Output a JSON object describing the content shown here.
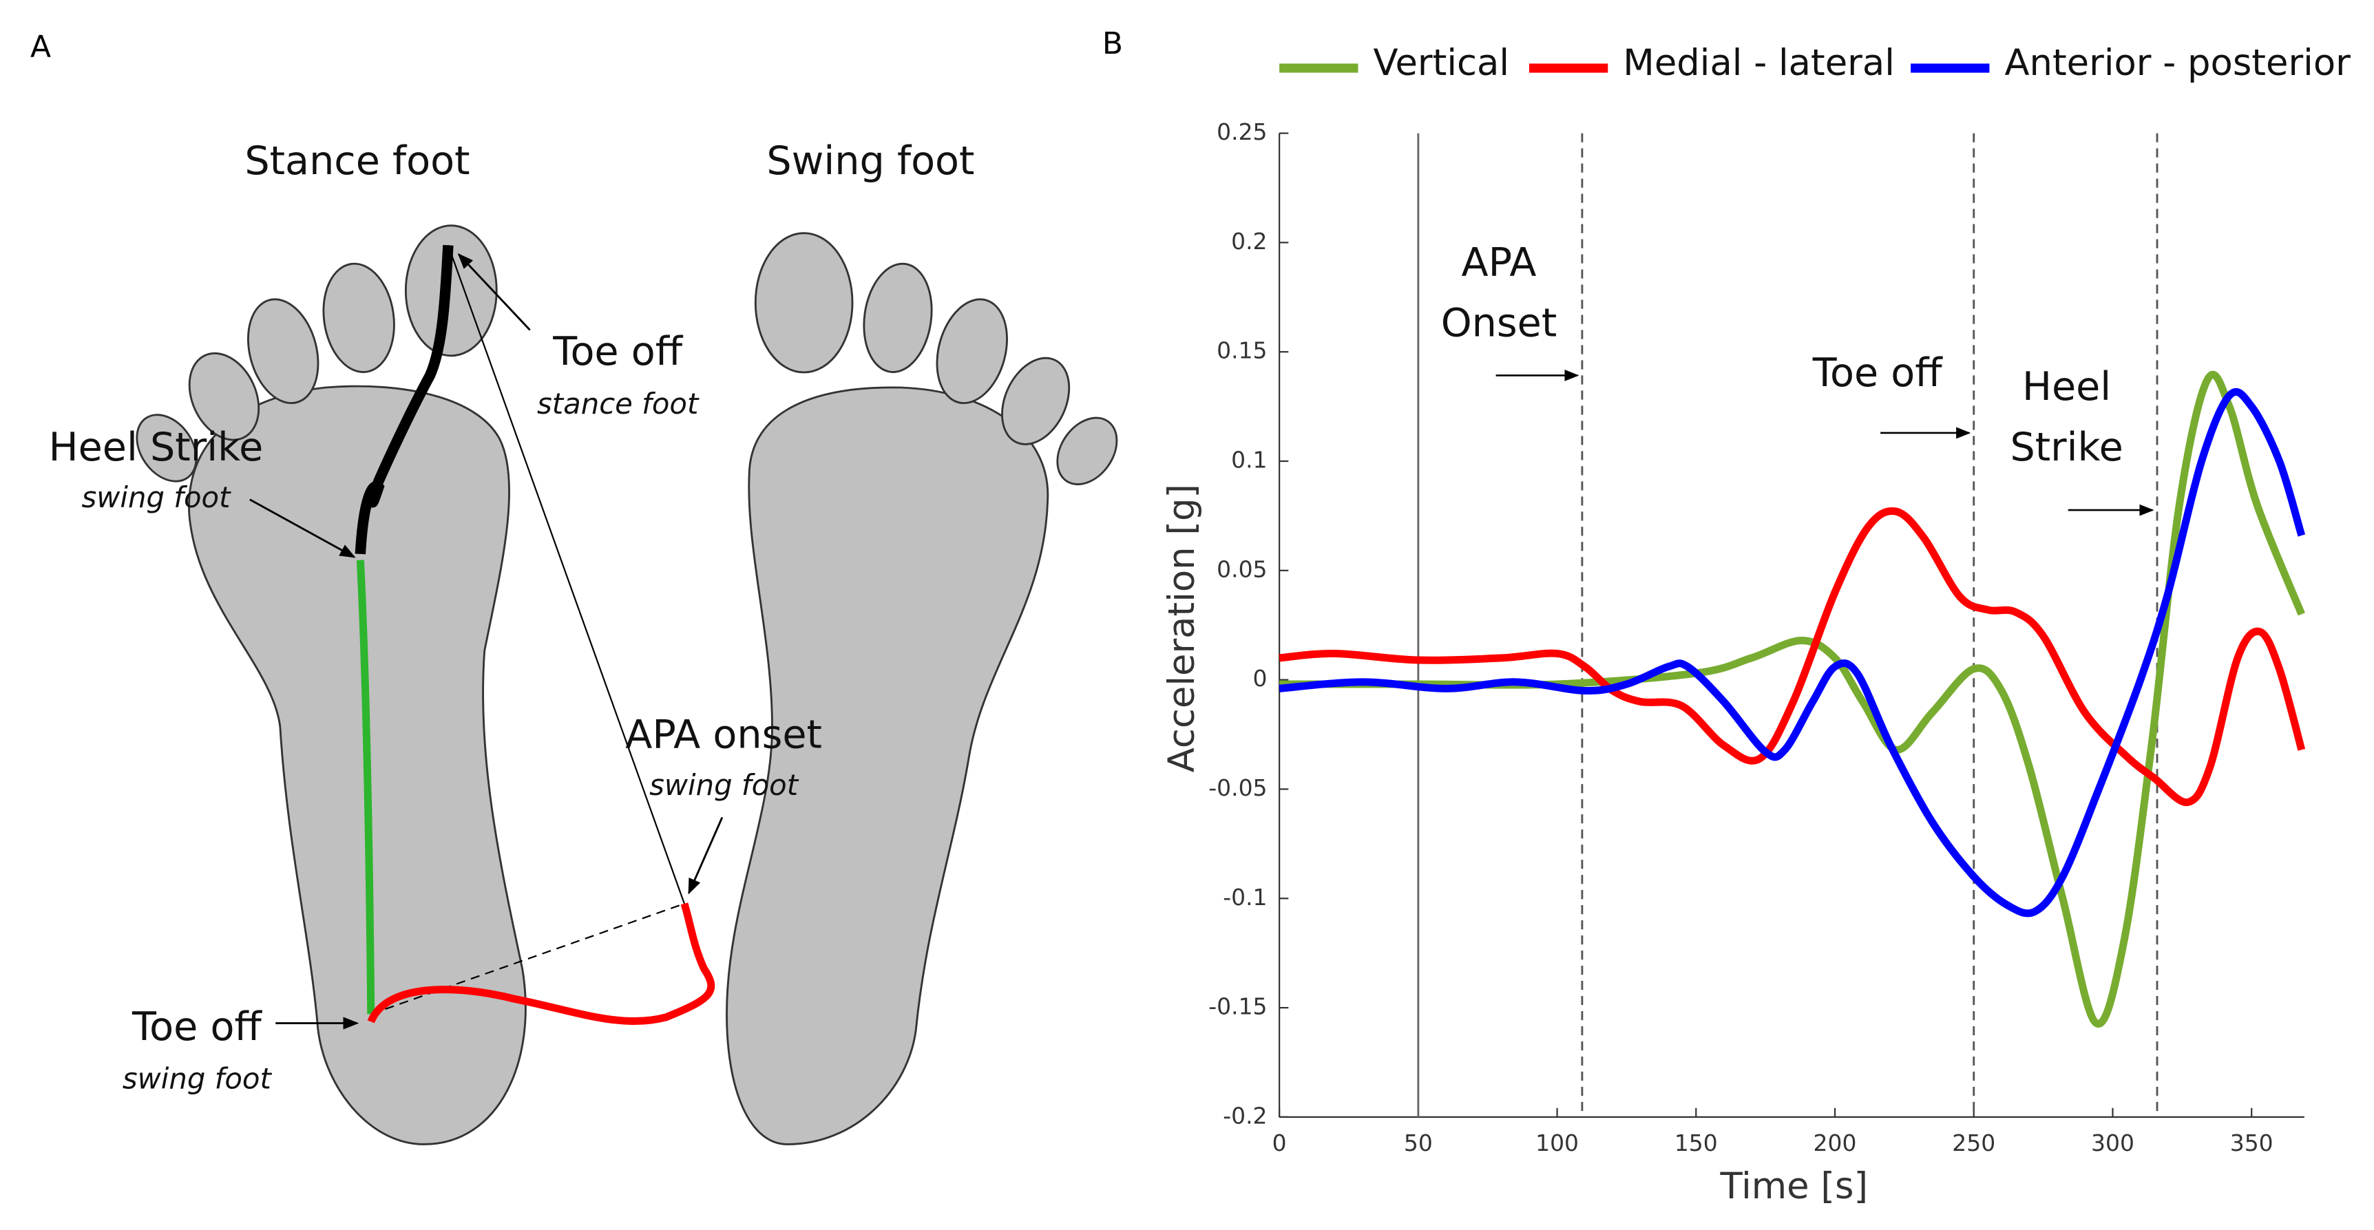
{
  "diagram": {
    "panel_label": "A",
    "stance_foot": "Stance foot",
    "swing_foot": "Swing foot",
    "annotations": [
      {
        "title": "Toe off",
        "subtitle": "stance foot"
      },
      {
        "title": "Heel Strike",
        "subtitle": "swing foot"
      },
      {
        "title": "APA onset",
        "subtitle": "swing foot"
      },
      {
        "title": "Toe off",
        "subtitle": "swing foot"
      }
    ]
  },
  "chart_data": {
    "type": "line",
    "panel_label": "B",
    "xlabel": "Time [s]",
    "ylabel": "Acceleration [g]",
    "xlim": [
      0,
      369
    ],
    "ylim": [
      -0.2,
      0.25
    ],
    "xticks": [
      0,
      50,
      100,
      150,
      200,
      250,
      300,
      350
    ],
    "yticks": [
      -0.2,
      -0.15,
      -0.1,
      -0.05,
      0,
      0.05,
      0.1,
      0.15,
      0.2,
      0.25
    ],
    "legend": "top",
    "events": [
      {
        "x": 50,
        "dashed": false
      },
      {
        "x": 109,
        "dashed": true
      },
      {
        "x": 250,
        "dashed": true
      },
      {
        "x": 316,
        "dashed": true
      }
    ],
    "annotations": [
      {
        "lines": [
          "APA",
          "Onset"
        ]
      },
      {
        "lines": [
          "Toe off"
        ]
      },
      {
        "lines": [
          "Heel",
          "Strike"
        ]
      }
    ],
    "series": [
      {
        "name": "Vertical",
        "color": "#77ac30",
        "x": [
          0,
          50,
          100,
          150,
          170,
          188,
          200,
          210,
          222,
          235,
          250,
          260,
          270,
          282,
          294,
          304,
          314,
          324,
          334,
          342,
          352,
          368
        ],
        "values": [
          -0.002,
          -0.002,
          -0.002,
          0.003,
          0.01,
          0.018,
          0.01,
          -0.01,
          -0.032,
          -0.015,
          0.005,
          -0.005,
          -0.04,
          -0.1,
          -0.157,
          -0.12,
          -0.03,
          0.08,
          0.137,
          0.125,
          0.08,
          0.03
        ]
      },
      {
        "name": "Medial - lateral",
        "color": "#ff0000",
        "x": [
          0,
          20,
          50,
          80,
          100,
          110,
          120,
          130,
          145,
          160,
          173,
          185,
          200,
          212,
          222,
          232,
          245,
          255,
          265,
          275,
          290,
          305,
          315,
          327,
          335,
          345,
          353,
          360,
          368
        ],
        "values": [
          0.01,
          0.012,
          0.009,
          0.01,
          0.012,
          0.006,
          -0.005,
          -0.01,
          -0.012,
          -0.03,
          -0.036,
          -0.01,
          0.04,
          0.07,
          0.077,
          0.065,
          0.038,
          0.032,
          0.031,
          0.02,
          -0.015,
          -0.035,
          -0.045,
          -0.056,
          -0.04,
          0.01,
          0.022,
          0.005,
          -0.032
        ]
      },
      {
        "name": "Anterior - posterior",
        "color": "#0000ff",
        "x": [
          0,
          30,
          60,
          85,
          110,
          125,
          140,
          147,
          160,
          175,
          182,
          192,
          200,
          208,
          220,
          235,
          250,
          262,
          272,
          282,
          295,
          310,
          320,
          332,
          342,
          350,
          360,
          368
        ],
        "values": [
          -0.004,
          -0.001,
          -0.004,
          -0.001,
          -0.005,
          -0.002,
          0.006,
          0.006,
          -0.01,
          -0.033,
          -0.032,
          -0.01,
          0.006,
          0.003,
          -0.03,
          -0.065,
          -0.09,
          -0.103,
          -0.106,
          -0.09,
          -0.05,
          0.0,
          0.04,
          0.1,
          0.13,
          0.125,
          0.1,
          0.066
        ]
      }
    ]
  }
}
